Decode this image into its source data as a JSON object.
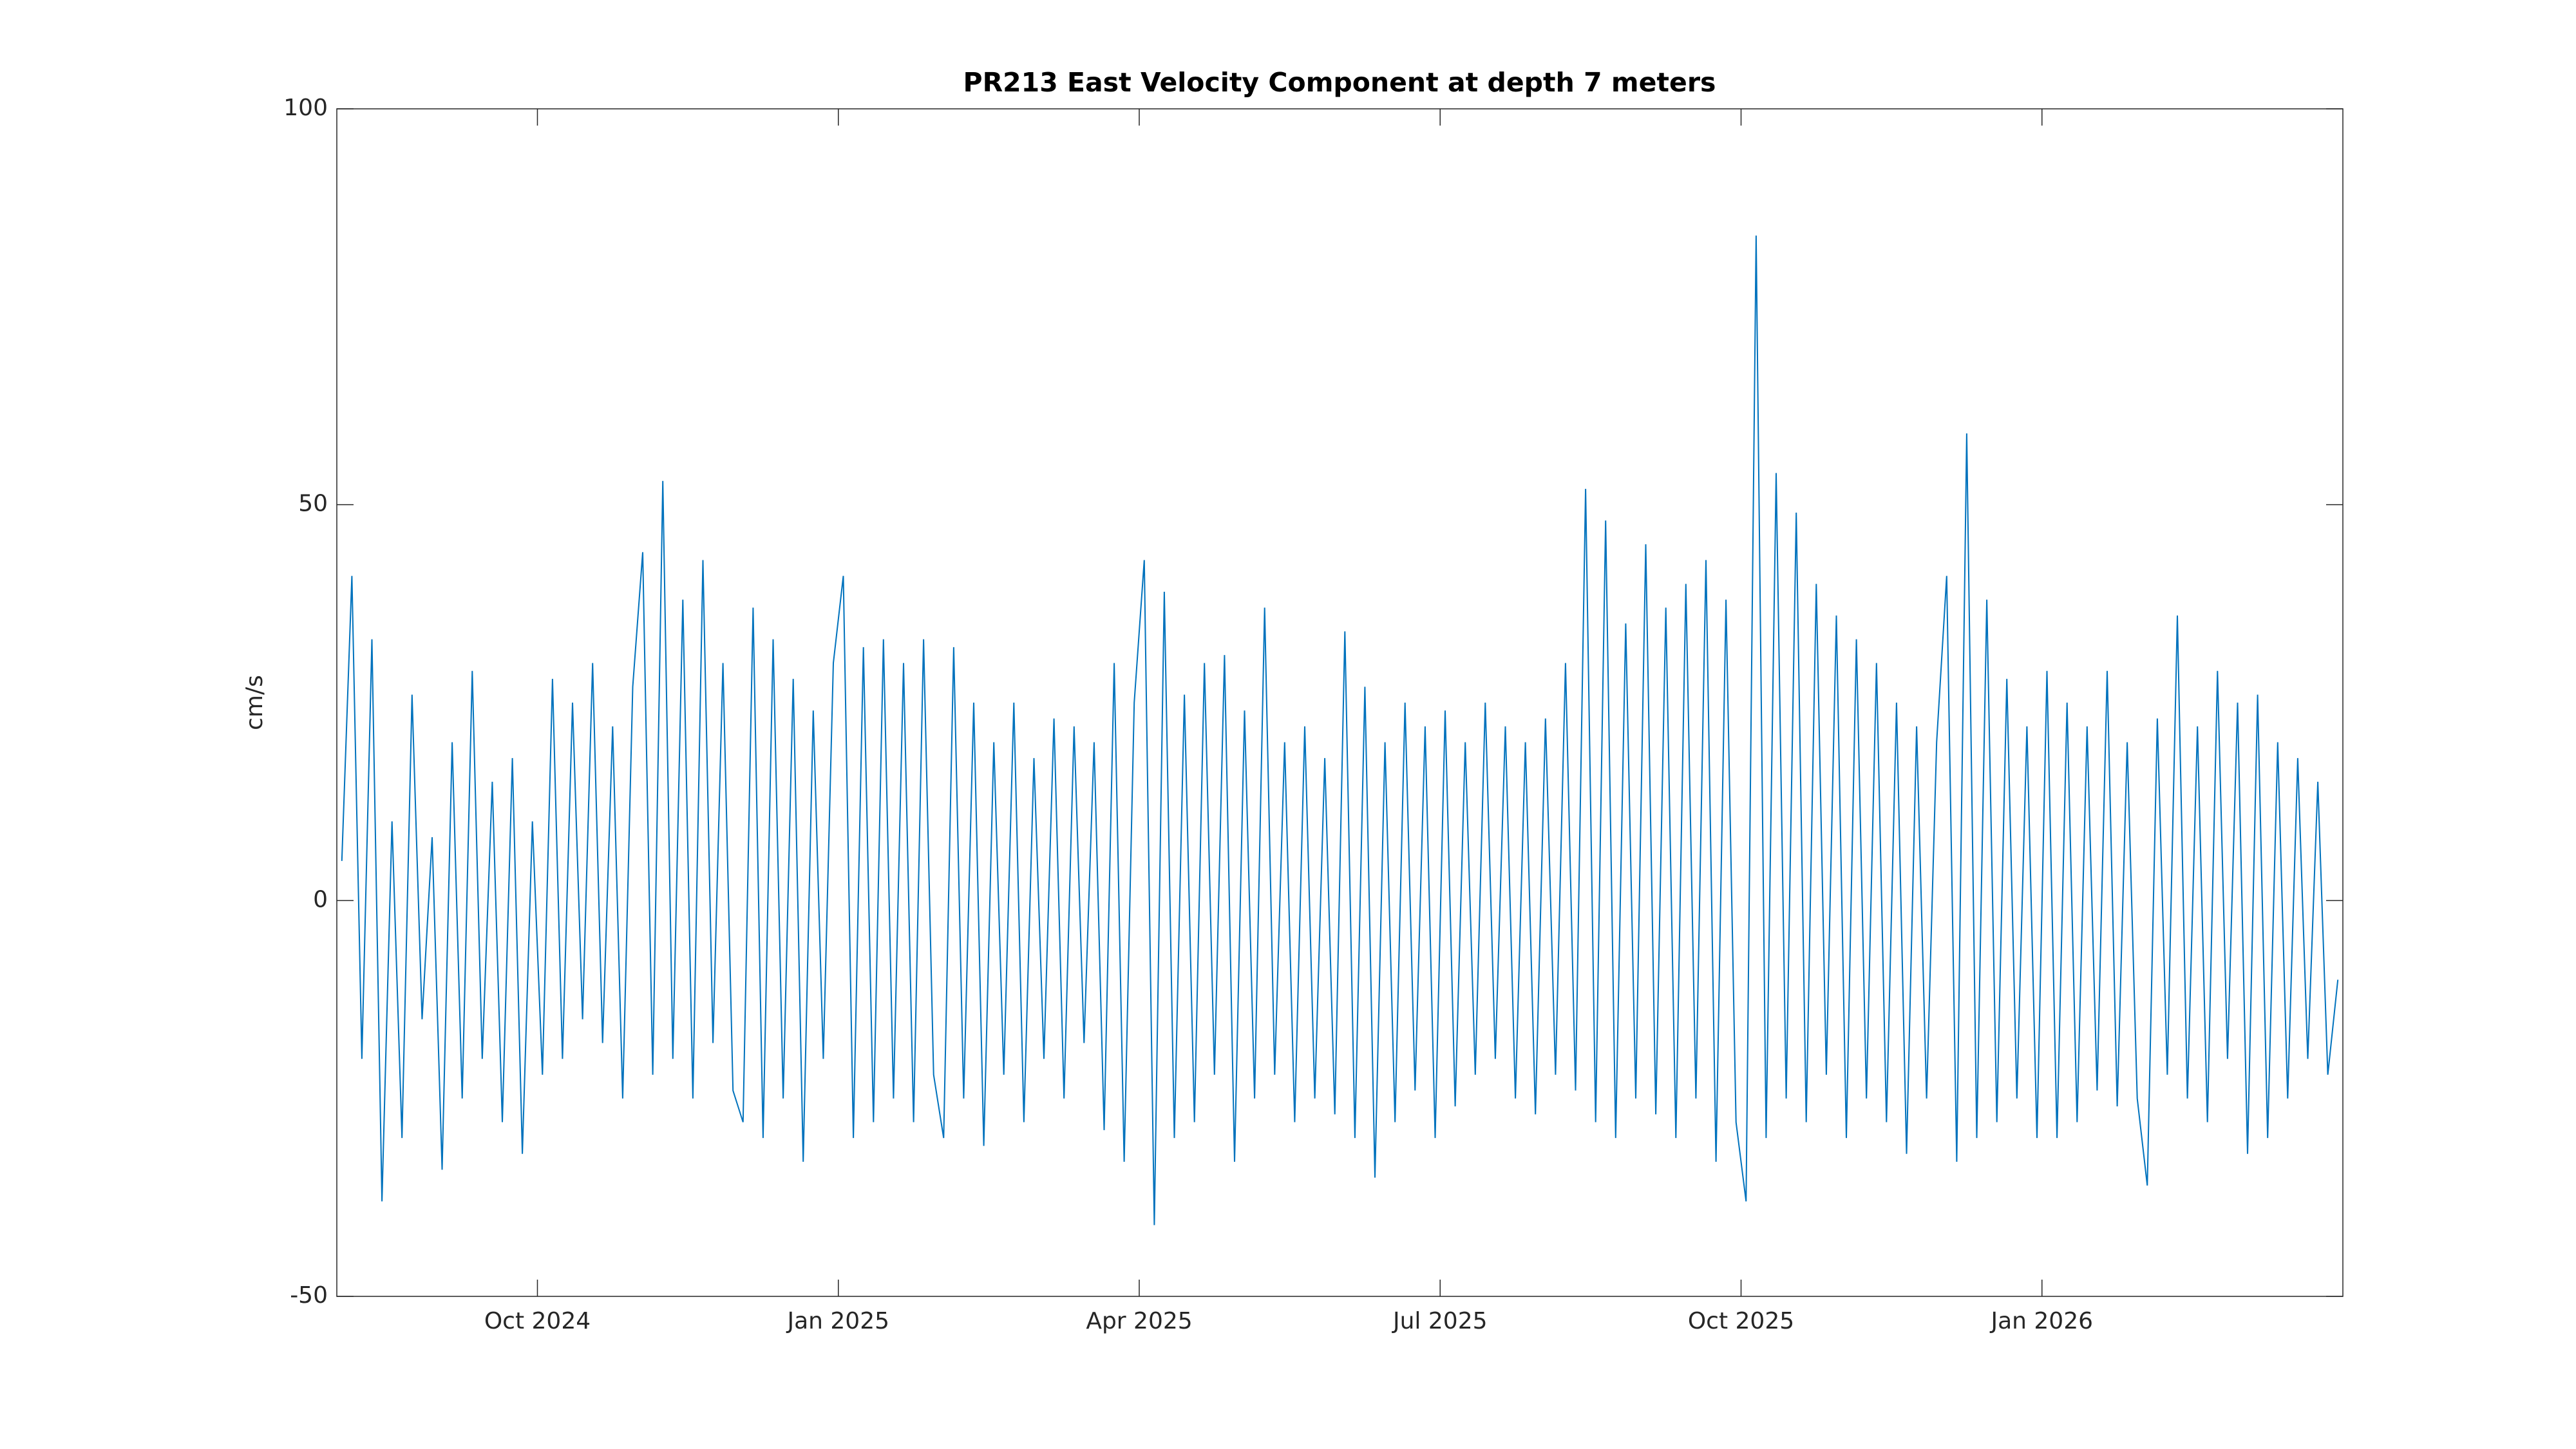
{
  "chart_data": {
    "type": "line",
    "title": "PR213 East Velocity Component at depth 7 meters",
    "y_label": "cm/s",
    "x": [
      "2024-08",
      "2024-09",
      "2024-10",
      "2024-11",
      "2024-12",
      "2025-01",
      "2025-02",
      "2025-03",
      "2025-04",
      "2025-05",
      "2025-06",
      "2025-07",
      "2025-08",
      "2025-09",
      "2025-10",
      "2025-11",
      "2025-12",
      "2026-01",
      "2026-02",
      "2026-03"
    ],
    "xlim": [
      "2024-08",
      "2026-03"
    ],
    "xticks": [
      {
        "value": "2024-10",
        "label": "Oct 2024"
      },
      {
        "value": "2025-01",
        "label": "Jan 2025"
      },
      {
        "value": "2025-04",
        "label": "Apr 2025"
      },
      {
        "value": "2025-07",
        "label": "Jul 2025"
      },
      {
        "value": "2025-10",
        "label": "Oct 2025"
      },
      {
        "value": "2026-01",
        "label": "Jan 2026"
      }
    ],
    "ylim": [
      -50,
      100
    ],
    "yticks": [
      -50,
      0,
      50,
      100
    ],
    "grid": false,
    "series": [
      {
        "color": "#0072bd",
        "values": [
          [
            5,
            41,
            -20,
            33,
            -38,
            10,
            -30,
            26,
            -15,
            8
          ],
          [
            -34,
            20,
            -25,
            29,
            -20,
            15,
            -28,
            18,
            -32,
            10
          ],
          [
            -22,
            28,
            -20,
            25,
            -15,
            30,
            -18,
            22,
            -25,
            27
          ],
          [
            44,
            -22,
            53,
            -20,
            38,
            -25,
            43,
            -18,
            30,
            -24
          ],
          [
            -28,
            37,
            -30,
            33,
            -25,
            28,
            -33,
            24,
            -20,
            30
          ],
          [
            41,
            -30,
            32,
            -28,
            33,
            -25,
            30,
            -28,
            33,
            -22
          ],
          [
            -30,
            32,
            -25,
            25,
            -31,
            20,
            -22,
            25,
            -28,
            18
          ],
          [
            -20,
            23,
            -25,
            22,
            -18,
            20,
            -29,
            30,
            -33,
            25
          ],
          [
            43,
            -41,
            39,
            -30,
            26,
            -28,
            30,
            -22,
            31,
            -33
          ],
          [
            24,
            -25,
            37,
            -22,
            20,
            -28,
            22,
            -25,
            18,
            -27
          ],
          [
            34,
            -30,
            27,
            -35,
            20,
            -28,
            25,
            -24,
            22,
            -30
          ],
          [
            24,
            -26,
            20,
            -22,
            25,
            -20,
            22,
            -25,
            20,
            -27
          ],
          [
            23,
            -22,
            30,
            -24,
            52,
            -28,
            48,
            -30,
            35,
            -25
          ],
          [
            45,
            -27,
            37,
            -30,
            40,
            -25,
            43,
            -33,
            38,
            -28
          ],
          [
            -38,
            84,
            -30,
            54,
            -25,
            49,
            -28,
            40,
            -22,
            36
          ],
          [
            -30,
            33,
            -25,
            30,
            -28,
            25,
            -32,
            22,
            -25,
            20
          ],
          [
            41,
            -33,
            59,
            -30,
            38,
            -28,
            28,
            -25,
            22,
            -30
          ],
          [
            29,
            -30,
            25,
            -28,
            22,
            -24,
            29,
            -26,
            20,
            -25
          ],
          [
            -36,
            23,
            -22,
            36,
            -25,
            22,
            -28,
            29,
            -20,
            25
          ],
          [
            -32,
            26,
            -30,
            20,
            -25,
            18,
            -20,
            15,
            -22,
            -10
          ]
        ]
      }
    ]
  }
}
